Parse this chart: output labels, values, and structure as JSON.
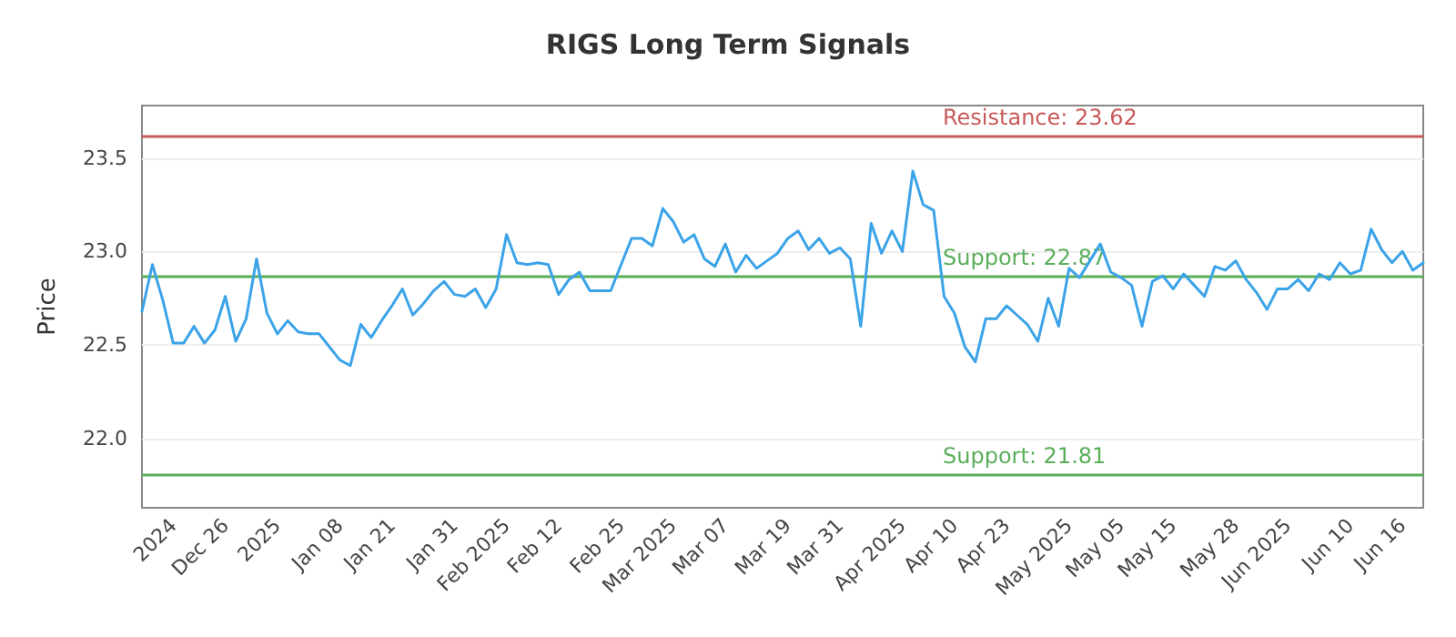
{
  "chart_data": {
    "type": "line",
    "title": "RIGS Long Term Signals",
    "ylabel": "Price",
    "categories": [
      null,
      null,
      null,
      "2024",
      null,
      null,
      null,
      null,
      "Dec 26",
      null,
      null,
      null,
      null,
      "2025",
      null,
      null,
      null,
      null,
      null,
      "Jan 08",
      null,
      null,
      null,
      null,
      "Jan 21",
      null,
      null,
      null,
      null,
      null,
      "Jan 31",
      null,
      null,
      null,
      null,
      "Feb 2025",
      null,
      null,
      null,
      null,
      "Feb 12",
      null,
      null,
      null,
      null,
      null,
      "Feb 25",
      null,
      null,
      null,
      null,
      "Mar 2025",
      null,
      null,
      null,
      null,
      "Mar 07",
      null,
      null,
      null,
      null,
      null,
      "Mar 19",
      null,
      null,
      null,
      null,
      "Mar 31",
      null,
      null,
      null,
      null,
      null,
      "Apr 2025",
      null,
      null,
      null,
      null,
      "Apr 10",
      null,
      null,
      null,
      null,
      "Apr 23",
      null,
      null,
      null,
      null,
      null,
      "May 2025",
      null,
      null,
      null,
      null,
      "May 05",
      null,
      null,
      null,
      null,
      "May 15",
      null,
      null,
      null,
      null,
      null,
      "May 28",
      null,
      null,
      null,
      null,
      "Jun 2025",
      null,
      null,
      null,
      null,
      null,
      "Jun 10",
      null,
      null,
      null,
      null,
      "Jun 16",
      null,
      null
    ],
    "series": [
      {
        "color": "#3ba3e8",
        "values": [
          22.68,
          22.93,
          22.74,
          22.51,
          22.51,
          22.6,
          22.51,
          22.58,
          22.76,
          22.52,
          22.64,
          22.96,
          22.67,
          22.56,
          22.63,
          22.57,
          22.56,
          22.56,
          22.49,
          22.42,
          22.39,
          22.61,
          22.54,
          22.63,
          22.71,
          22.8,
          22.66,
          22.72,
          22.79,
          22.84,
          22.77,
          22.76,
          22.8,
          22.7,
          22.8,
          23.09,
          22.94,
          22.93,
          22.94,
          22.93,
          22.77,
          22.85,
          22.89,
          22.79,
          22.79,
          22.79,
          22.93,
          23.07,
          23.07,
          23.03,
          23.23,
          23.16,
          23.05,
          23.09,
          22.96,
          22.92,
          23.04,
          22.89,
          22.98,
          22.91,
          22.95,
          22.99,
          23.07,
          23.11,
          23.01,
          23.07,
          22.99,
          23.02,
          22.96,
          22.6,
          23.15,
          22.99,
          23.11,
          23.0,
          23.43,
          23.25,
          23.22,
          22.76,
          22.67,
          22.49,
          22.41,
          22.64,
          22.64,
          22.71,
          22.66,
          22.61,
          22.52,
          22.75,
          22.6,
          22.91,
          22.86,
          22.95,
          23.04,
          22.89,
          22.86,
          22.82,
          22.6,
          22.84,
          22.87,
          22.8,
          22.88,
          22.82,
          22.76,
          22.92,
          22.9,
          22.95,
          22.85,
          22.78,
          22.69,
          22.8,
          22.8,
          22.85,
          22.79,
          22.88,
          22.85,
          22.94,
          22.88,
          22.9,
          23.12,
          23.01,
          22.94,
          23.0,
          22.9,
          22.94
        ]
      }
    ],
    "ylim": [
      21.63,
      23.78
    ],
    "yticks": [
      {
        "value": 22,
        "label": "22.0"
      },
      22.5,
      {
        "value": 23,
        "label": "23.0"
      },
      23.5
    ],
    "grid": "y",
    "marker": "none",
    "line_style": "solid",
    "ref_lines": [
      {
        "axis": "y",
        "value": 23.62,
        "label": "Resistance: 23.62",
        "color": "#c85a5a"
      },
      {
        "axis": "y",
        "value": 22.87,
        "label": "Support: 22.87",
        "color": "#5aae5a"
      },
      {
        "axis": "y",
        "value": 21.81,
        "label": "Support: 21.81",
        "color": "#5aae5a"
      }
    ]
  }
}
